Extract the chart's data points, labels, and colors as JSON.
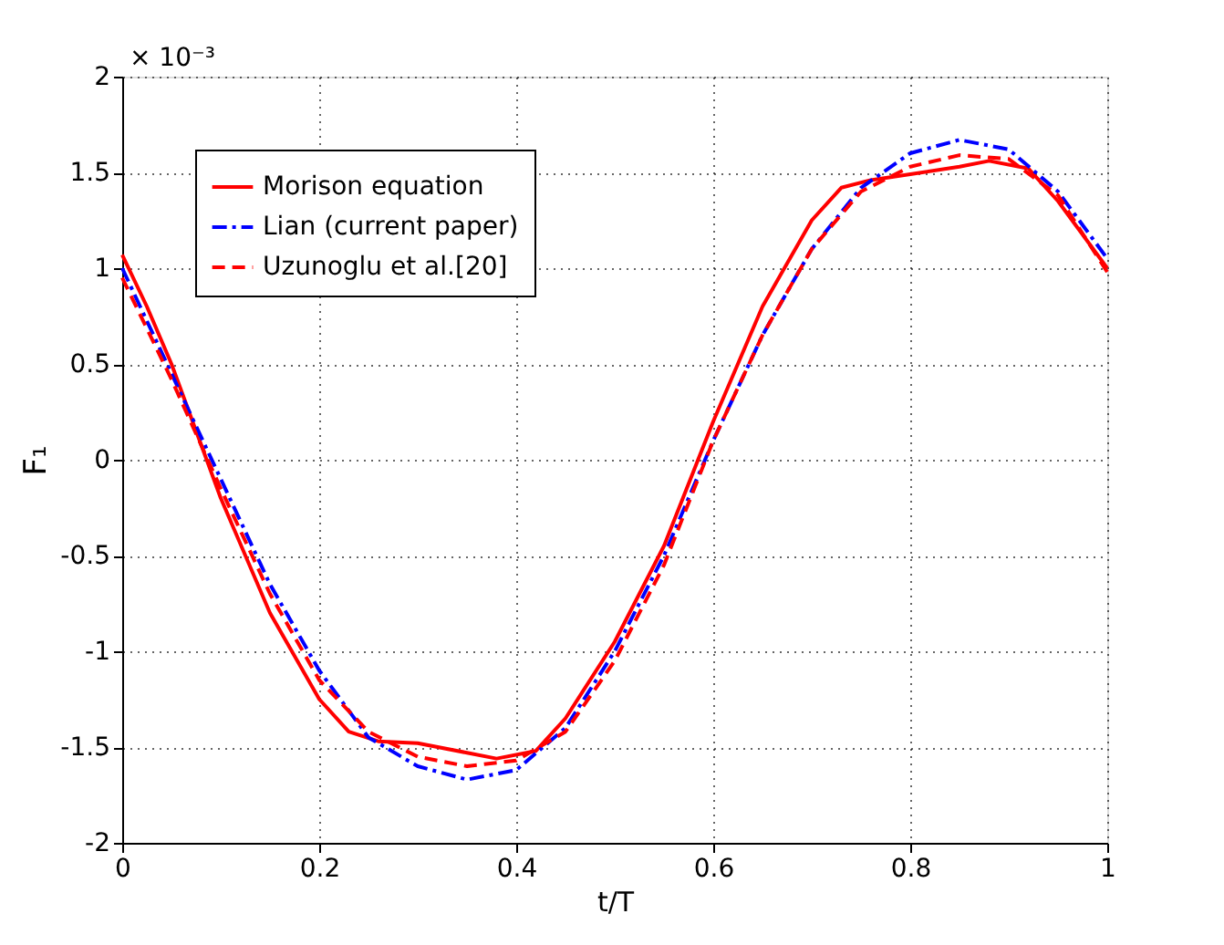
{
  "chart_data": {
    "type": "line",
    "xlabel": "t/T",
    "ylabel": "F₁",
    "annotations": [
      "× 10⁻³"
    ],
    "xlim": [
      0,
      1
    ],
    "xticks": [
      0,
      0.2,
      0.4,
      0.6,
      0.8,
      1
    ],
    "ylim": [
      -2,
      2
    ],
    "yticks": [
      -2,
      -1.5,
      -1,
      -0.5,
      0,
      0.5,
      1,
      1.5,
      2
    ],
    "grid": true,
    "legend": "top left",
    "marker": "none",
    "series": [
      {
        "name": "Morison equation",
        "color": "#ff0000",
        "line_style": "solid",
        "x": [
          0,
          0.025,
          0.05,
          0.1,
          0.15,
          0.2,
          0.23,
          0.26,
          0.3,
          0.35,
          0.38,
          0.42,
          0.45,
          0.5,
          0.55,
          0.6,
          0.65,
          0.7,
          0.73,
          0.76,
          0.8,
          0.85,
          0.88,
          0.92,
          0.95,
          1.0
        ],
        "values": [
          1.07,
          0.8,
          0.5,
          -0.2,
          -0.8,
          -1.25,
          -1.42,
          -1.47,
          -1.48,
          -1.53,
          -1.56,
          -1.52,
          -1.35,
          -0.95,
          -0.45,
          0.2,
          0.8,
          1.25,
          1.42,
          1.46,
          1.49,
          1.53,
          1.56,
          1.52,
          1.35,
          1.0
        ]
      },
      {
        "name": "Lian (current paper)",
        "color": "#0000ff",
        "line_style": "dashdot",
        "x": [
          0,
          0.05,
          0.1,
          0.15,
          0.2,
          0.25,
          0.3,
          0.35,
          0.4,
          0.45,
          0.5,
          0.55,
          0.6,
          0.65,
          0.7,
          0.75,
          0.8,
          0.85,
          0.9,
          0.95,
          1.0
        ],
        "values": [
          1.0,
          0.45,
          -0.1,
          -0.65,
          -1.1,
          -1.45,
          -1.6,
          -1.67,
          -1.62,
          -1.4,
          -1.0,
          -0.5,
          0.1,
          0.65,
          1.1,
          1.42,
          1.6,
          1.67,
          1.62,
          1.4,
          1.05
        ]
      },
      {
        "name": "Uzunoglu et al.[20]",
        "color": "#ff0000",
        "line_style": "dashed",
        "x": [
          0,
          0.05,
          0.1,
          0.15,
          0.2,
          0.25,
          0.3,
          0.35,
          0.4,
          0.45,
          0.5,
          0.55,
          0.6,
          0.65,
          0.7,
          0.75,
          0.8,
          0.85,
          0.9,
          0.95,
          1.0
        ],
        "values": [
          0.95,
          0.42,
          -0.15,
          -0.7,
          -1.15,
          -1.42,
          -1.55,
          -1.6,
          -1.57,
          -1.42,
          -1.05,
          -0.55,
          0.1,
          0.65,
          1.1,
          1.4,
          1.53,
          1.59,
          1.57,
          1.38,
          0.98
        ]
      }
    ]
  }
}
